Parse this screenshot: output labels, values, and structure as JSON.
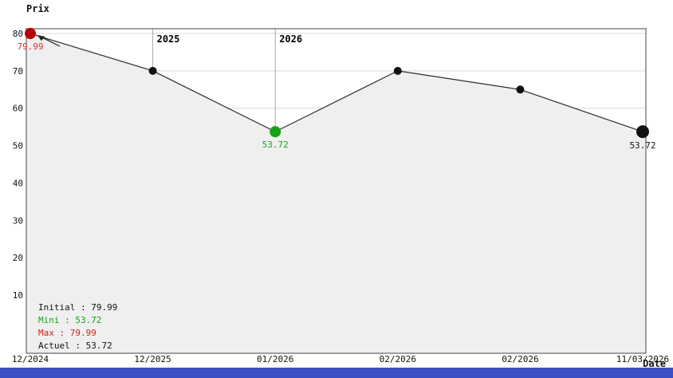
{
  "chart_data": {
    "type": "line",
    "title": "",
    "y_axis_title": "Prix",
    "x_axis_title": "Date",
    "categories": [
      "12/2024",
      "12/2025",
      "01/2026",
      "02/2026",
      "02/2026",
      "11/03/2026"
    ],
    "values": [
      79.99,
      70,
      53.72,
      70,
      65,
      53.72
    ],
    "y_ticks": [
      10,
      20,
      30,
      40,
      50,
      60,
      70,
      80
    ],
    "ylim": [
      -5,
      85
    ],
    "grid": true,
    "legend_position": "bottom-left-inside",
    "year_markers": [
      {
        "label": "2025",
        "at_index": 1
      },
      {
        "label": "2026",
        "at_index": 2
      }
    ],
    "points": [
      {
        "category": "12/2024",
        "value": 79.99,
        "color": "#b40000",
        "radius": 7,
        "label": "79.99",
        "label_color": "#cc3333"
      },
      {
        "category": "12/2025",
        "value": 70,
        "color": "#111111",
        "radius": 5,
        "label": "",
        "label_color": ""
      },
      {
        "category": "01/2026",
        "value": 53.72,
        "color": "#17a317",
        "radius": 7,
        "label": "53.72",
        "label_color": "#17a317"
      },
      {
        "category": "02/2026",
        "value": 70,
        "color": "#111111",
        "radius": 5,
        "label": "",
        "label_color": ""
      },
      {
        "category": "02/2026",
        "value": 65,
        "color": "#111111",
        "radius": 5,
        "label": "",
        "label_color": ""
      },
      {
        "category": "11/03/2026",
        "value": 53.72,
        "color": "#111111",
        "radius": 8,
        "label": "53.72",
        "label_color": "#111111"
      }
    ],
    "colors": {
      "line": "#2b2b2b",
      "area_fill": "#efefef",
      "grid": "#d9d9d9",
      "year_line": "#ababab",
      "axis": "#444444"
    }
  },
  "legend": {
    "rows": [
      {
        "text": "Initial : 79.99",
        "color": "#111111"
      },
      {
        "text": "Mini : 53.72",
        "color": "#17a317"
      },
      {
        "text": "Max : 79.99",
        "color": "#cc2222"
      },
      {
        "text": "Actuel : 53.72",
        "color": "#111111"
      }
    ]
  },
  "selector_bar": {
    "color": "#3d4fc4"
  }
}
